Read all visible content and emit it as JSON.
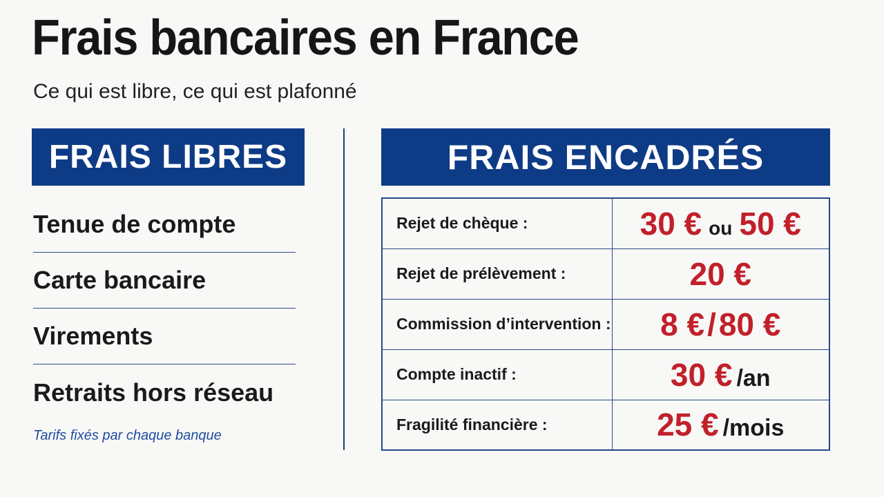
{
  "title": "Frais bancaires en France",
  "subtitle": "Ce qui est libre, ce qui est plafonné",
  "free_fees": {
    "header": "FRAIS LIBRES",
    "items": [
      "Tenue de compte",
      "Carte bancaire",
      "Virements",
      "Retraits hors réseau"
    ],
    "note": "Tarifs fixés par chaque banque"
  },
  "capped_fees": {
    "header": "FRAIS ENCADRÉS",
    "rows": [
      {
        "label": "Rejet de chèque :",
        "amount": "30 €",
        "connector": "ou",
        "amount2": "50 €",
        "suffix": ""
      },
      {
        "label": "Rejet de prélèvement :",
        "amount": "20 €",
        "connector": "",
        "amount2": "",
        "suffix": ""
      },
      {
        "label": "Commission d’intervention :",
        "amount": "8 €",
        "connector": "/",
        "amount2": "80 €",
        "suffix": ""
      },
      {
        "label": "Compte inactif :",
        "amount": "30 €",
        "connector": "",
        "amount2": "",
        "suffix": "/an"
      },
      {
        "label": "Fragilité financière :",
        "amount": "25 €",
        "connector": "",
        "amount2": "",
        "suffix": "/mois"
      }
    ]
  },
  "colors": {
    "banner_blue": "#0e3b85",
    "amount_red": "#c1202b",
    "note_blue": "#1f4da0",
    "background": "#f8f8f6"
  }
}
